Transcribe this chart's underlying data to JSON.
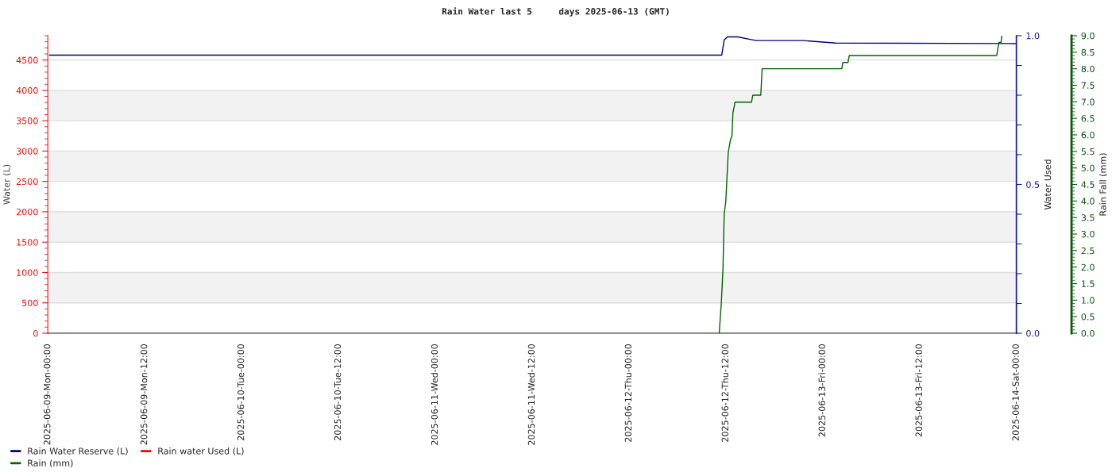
{
  "chart_data": {
    "type": "line",
    "title": "Rain Water last 5     days 2025-06-13 (GMT)",
    "ylabel": "Water (L)",
    "y2label": "Water Used",
    "y3label": "Rain Fall (mm)",
    "xlim": [
      "2025-06-09T00:00",
      "2025-06-14T00:00"
    ],
    "xticks": [
      {
        "value": "2025-06-09T00:00",
        "label": "2025-06-09-Mon-00:00"
      },
      {
        "value": "2025-06-09T12:00",
        "label": "2025-06-09-Mon-12:00"
      },
      {
        "value": "2025-06-10T00:00",
        "label": "2025-06-10-Tue-00:00"
      },
      {
        "value": "2025-06-10T12:00",
        "label": "2025-06-10-Tue-12:00"
      },
      {
        "value": "2025-06-11T00:00",
        "label": "2025-06-11-Wed-00:00"
      },
      {
        "value": "2025-06-11T12:00",
        "label": "2025-06-11-Wed-12:00"
      },
      {
        "value": "2025-06-12T00:00",
        "label": "2025-06-12-Thu-00:00"
      },
      {
        "value": "2025-06-12T12:00",
        "label": "2025-06-12-Thu-12:00"
      },
      {
        "value": "2025-06-13T00:00",
        "label": "2025-06-13-Fri-00:00"
      },
      {
        "value": "2025-06-13T12:00",
        "label": "2025-06-13-Fri-12:00"
      },
      {
        "value": "2025-06-14T00:00",
        "label": "2025-06-14-Sat-00:00"
      }
    ],
    "ylim": [
      0,
      4900
    ],
    "yticks": [
      0,
      500,
      1000,
      1500,
      2000,
      2500,
      3000,
      3500,
      4000,
      4500
    ],
    "y2lim": [
      0,
      1
    ],
    "y2ticks": [
      {
        "value": 0,
        "label": "0.0"
      },
      {
        "value": 0.1,
        "label": null
      },
      {
        "value": 0.2,
        "label": null
      },
      {
        "value": 0.3,
        "label": null
      },
      {
        "value": 0.4,
        "label": null
      },
      {
        "value": 0.5,
        "label": "0.5"
      },
      {
        "value": 0.6,
        "label": null
      },
      {
        "value": 0.7,
        "label": null
      },
      {
        "value": 0.8,
        "label": null
      },
      {
        "value": 0.9,
        "label": null
      },
      {
        "value": 1,
        "label": "1.0"
      }
    ],
    "y3lim": [
      0,
      9
    ],
    "y3ticks": [
      {
        "value": 0,
        "label": "0.0"
      },
      {
        "value": 0.5,
        "label": "0.5"
      },
      {
        "value": 1,
        "label": "1.0"
      },
      {
        "value": 1.5,
        "label": "1.5"
      },
      {
        "value": 2,
        "label": "2.0"
      },
      {
        "value": 2.5,
        "label": "2.5"
      },
      {
        "value": 3,
        "label": "3.0"
      },
      {
        "value": 3.5,
        "label": "3.5"
      },
      {
        "value": 4,
        "label": "4.0"
      },
      {
        "value": 4.5,
        "label": "4.5"
      },
      {
        "value": 5,
        "label": "5.0"
      },
      {
        "value": 5.5,
        "label": "5.5"
      },
      {
        "value": 6,
        "label": "6.0"
      },
      {
        "value": 6.5,
        "label": "6.5"
      },
      {
        "value": 7,
        "label": "7.0"
      },
      {
        "value": 7.5,
        "label": "7.5"
      },
      {
        "value": 8,
        "label": "8.0"
      },
      {
        "value": 8.5,
        "label": "8.5"
      },
      {
        "value": 9,
        "label": "9.0"
      }
    ],
    "grid": "y",
    "legend": "bottom left",
    "line_style": "solid",
    "marker": "none",
    "bands": [
      {
        "axis": "y",
        "from": 500,
        "to": 1000,
        "color": "#f2f2f2"
      },
      {
        "axis": "y",
        "from": 1500,
        "to": 2000,
        "color": "#f2f2f2"
      },
      {
        "axis": "y",
        "from": 2500,
        "to": 3000,
        "color": "#f2f2f2"
      },
      {
        "axis": "y",
        "from": 3500,
        "to": 4000,
        "color": "#f2f2f2"
      }
    ],
    "series": [
      {
        "name": "Rain Water Reserve (L)",
        "color": "#000080",
        "x": [
          "2025-06-09T00:12",
          "2025-06-12T11:30",
          "2025-06-12T11:48",
          "2025-06-12T12:12",
          "2025-06-12T13:30",
          "2025-06-12T15:00",
          "2025-06-12T15:48",
          "2025-06-12T21:36",
          "2025-06-13T01:36",
          "2025-06-14T00:00"
        ],
        "values": [
          4580,
          4580,
          4830,
          4880,
          4880,
          4840,
          4820,
          4820,
          4780,
          4770
        ]
      },
      {
        "name": "Rain water Used (L)",
        "color": "#ff0000",
        "axis": "y2"
      },
      {
        "name": "Rain (mm)",
        "color": "#006400",
        "axis": "y3",
        "x": [
          "2025-06-12T11:11",
          "2025-06-12T11:27",
          "2025-06-12T11:39",
          "2025-06-12T11:48",
          "2025-06-12T12:00",
          "2025-06-12T12:18",
          "2025-06-12T12:34",
          "2025-06-12T12:46",
          "2025-06-12T12:53",
          "2025-06-12T13:09",
          "2025-06-12T15:11",
          "2025-06-12T15:21",
          "2025-06-12T16:20",
          "2025-06-12T16:30",
          "2025-06-13T02:22",
          "2025-06-13T02:30",
          "2025-06-13T03:08",
          "2025-06-13T03:18",
          "2025-06-13T21:34",
          "2025-06-13T21:50",
          "2025-06-13T22:06",
          "2025-06-13T22:12"
        ],
        "values": [
          0,
          0.93,
          1.95,
          3.6,
          3.99,
          5.46,
          5.84,
          5.98,
          6.67,
          6.99,
          6.99,
          7.2,
          7.2,
          8.0,
          8.0,
          8.19,
          8.19,
          8.4,
          8.4,
          8.8,
          8.8,
          9.0
        ]
      }
    ]
  }
}
